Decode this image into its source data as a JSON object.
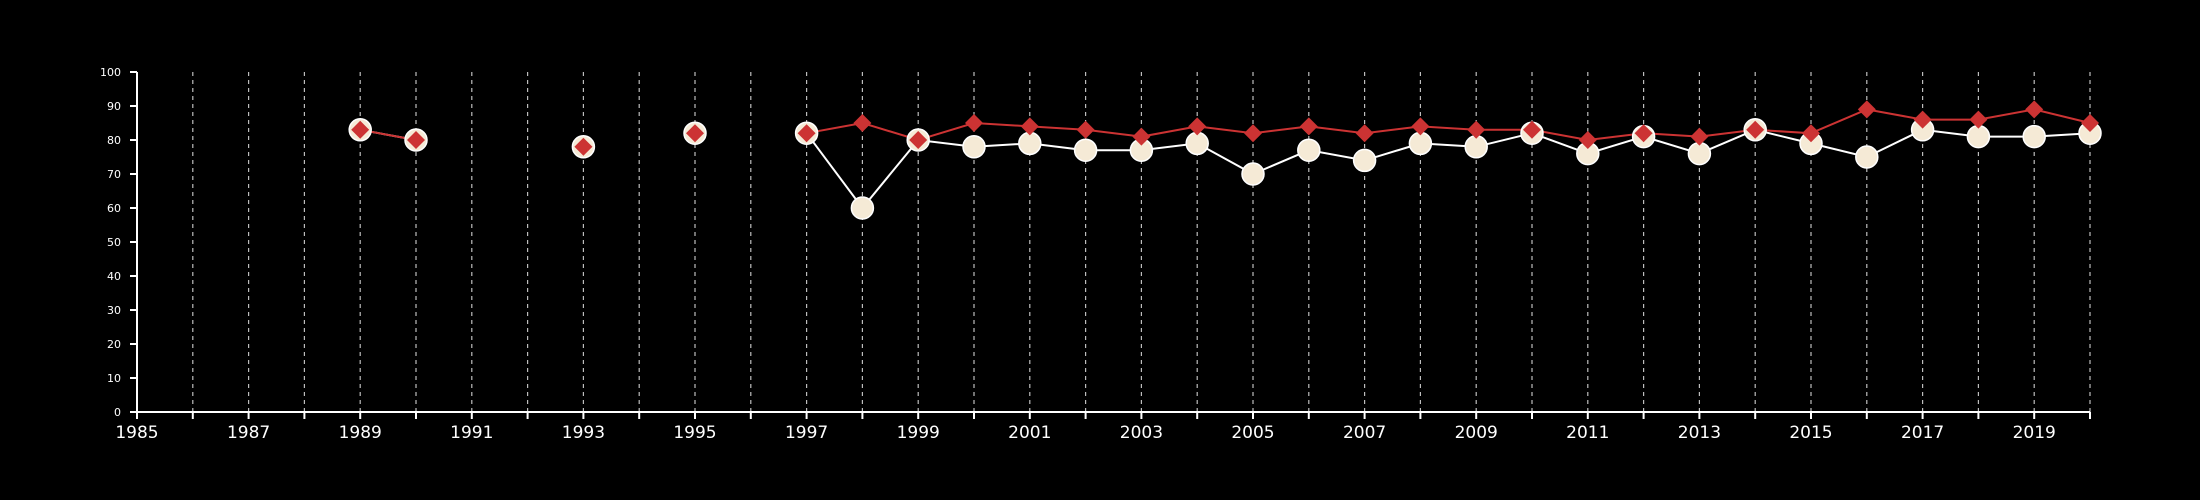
{
  "chart_data": {
    "type": "line",
    "title": "",
    "xlabel": "",
    "ylabel": "",
    "xlim": [
      1985,
      2020
    ],
    "ylim": [
      0,
      100
    ],
    "x_ticks": [
      1985,
      1987,
      1989,
      1991,
      1993,
      1995,
      1997,
      1999,
      2001,
      2003,
      2005,
      2007,
      2009,
      2011,
      2013,
      2015,
      2017,
      2019
    ],
    "y_ticks": [
      0,
      10,
      20,
      30,
      40,
      50,
      60,
      70,
      80,
      90,
      100
    ],
    "grid": "vertical dashed lines at each year",
    "legend": "none",
    "background": "#000000",
    "series": [
      {
        "marker": "circle",
        "color": "#f5ead6",
        "outline": "#ffffff",
        "points": [
          [
            1989,
            83
          ],
          [
            1990,
            80
          ],
          [
            1993,
            78
          ],
          [
            1995,
            82
          ],
          [
            1997,
            82
          ],
          [
            1998,
            60
          ],
          [
            1999,
            80
          ],
          [
            2000,
            78
          ],
          [
            2001,
            79
          ],
          [
            2002,
            77
          ],
          [
            2003,
            77
          ],
          [
            2004,
            79
          ],
          [
            2005,
            70
          ],
          [
            2006,
            77
          ],
          [
            2007,
            74
          ],
          [
            2008,
            79
          ],
          [
            2009,
            78
          ],
          [
            2010,
            82
          ],
          [
            2011,
            76
          ],
          [
            2012,
            81
          ],
          [
            2013,
            76
          ],
          [
            2014,
            83
          ],
          [
            2015,
            79
          ],
          [
            2016,
            75
          ],
          [
            2017,
            83
          ],
          [
            2018,
            81
          ],
          [
            2019,
            81
          ],
          [
            2020,
            82
          ]
        ]
      },
      {
        "marker": "diamond",
        "color": "#cc3333",
        "points": [
          [
            1989,
            83
          ],
          [
            1990,
            80
          ],
          [
            1993,
            78
          ],
          [
            1995,
            82
          ],
          [
            1997,
            82
          ],
          [
            1998,
            85
          ],
          [
            1999,
            80
          ],
          [
            2000,
            85
          ],
          [
            2001,
            84
          ],
          [
            2002,
            83
          ],
          [
            2003,
            81
          ],
          [
            2004,
            84
          ],
          [
            2005,
            82
          ],
          [
            2006,
            84
          ],
          [
            2007,
            82
          ],
          [
            2008,
            84
          ],
          [
            2009,
            83
          ],
          [
            2010,
            83
          ],
          [
            2011,
            80
          ],
          [
            2012,
            82
          ],
          [
            2013,
            81
          ],
          [
            2014,
            83
          ],
          [
            2015,
            82
          ],
          [
            2016,
            89
          ],
          [
            2017,
            86
          ],
          [
            2018,
            86
          ],
          [
            2019,
            89
          ],
          [
            2020,
            85
          ]
        ]
      }
    ]
  }
}
